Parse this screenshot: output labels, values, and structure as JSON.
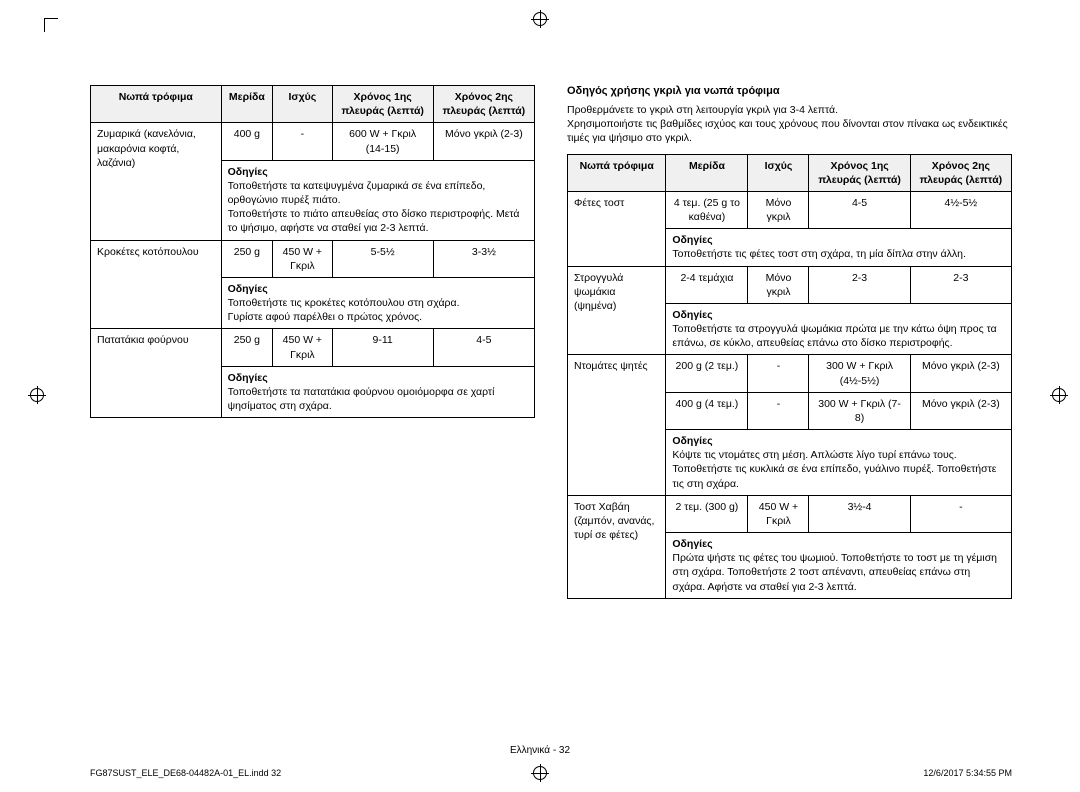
{
  "left": {
    "headers": [
      "Νωπά τρόφιμα",
      "Μερίδα",
      "Ισχύς",
      "Χρόνος 1ης πλευράς (λεπτά)",
      "Χρόνος 2ης πλευράς (λεπτά)"
    ],
    "rows": [
      {
        "food": "Ζυμαρικά (κανελόνια, μακαρόνια κοφτά, λαζάνια)",
        "portion": "400 g",
        "power": "-",
        "side1": "600 W + Γκριλ (14-15)",
        "side2": "Μόνο γκριλ (2-3)",
        "instr_label": "Οδηγίες",
        "instr": "Τοποθετήστε τα κατεψυγμένα ζυμαρικά σε ένα επίπεδο, ορθογώνιο πυρέξ πιάτο.\nΤοποθετήστε το πιάτο απευθείας στο δίσκο περιστροφής. Μετά το ψήσιμο, αφήστε να σταθεί για 2-3 λεπτά."
      },
      {
        "food": "Κροκέτες κοτόπουλου",
        "portion": "250 g",
        "power": "450 W + Γκριλ",
        "side1": "5-5½",
        "side2": "3-3½",
        "instr_label": "Οδηγίες",
        "instr": "Τοποθετήστε τις κροκέτες κοτόπουλου στη σχάρα.\nΓυρίστε αφού παρέλθει ο πρώτος χρόνος."
      },
      {
        "food": "Πατατάκια φούρνου",
        "portion": "250 g",
        "power": "450 W + Γκριλ",
        "side1": "9-11",
        "side2": "4-5",
        "instr_label": "Οδηγίες",
        "instr": "Τοποθετήστε τα πατατάκια φούρνου ομοιόμορφα σε χαρτί ψησίματος στη σχάρα."
      }
    ]
  },
  "right": {
    "title": "Οδηγός χρήσης γκριλ για νωπά τρόφιμα",
    "intro": "Προθερμάνετε το γκριλ στη λειτουργία γκριλ για 3-4 λεπτά.\nΧρησιμοποιήστε τις βαθμίδες ισχύος και τους χρόνους που δίνονται στον πίνακα ως ενδεικτικές τιμές για ψήσιμο στο γκριλ.",
    "headers": [
      "Νωπά τρόφιμα",
      "Μερίδα",
      "Ισχύς",
      "Χρόνος 1ης πλευράς (λεπτά)",
      "Χρόνος 2ης πλευράς (λεπτά)"
    ],
    "rows": [
      {
        "food": "Φέτες τοστ",
        "portion": "4 τεμ. (25 g το καθένα)",
        "power": "Μόνο γκριλ",
        "side1": "4-5",
        "side2": "4½-5½",
        "instr_label": "Οδηγίες",
        "instr": "Τοποθετήστε τις φέτες τοστ στη σχάρα, τη μία δίπλα στην άλλη."
      },
      {
        "food": "Στρογγυλά ψωμάκια (ψημένα)",
        "portion": "2-4 τεμάχια",
        "power": "Μόνο γκριλ",
        "side1": "2-3",
        "side2": "2-3",
        "instr_label": "Οδηγίες",
        "instr": "Τοποθετήστε τα στρογγυλά ψωμάκια πρώτα με την κάτω όψη προς τα επάνω, σε κύκλο, απευθείας επάνω στο δίσκο περιστροφής."
      },
      {
        "food": "Ντομάτες ψητές",
        "sub": [
          {
            "portion": "200 g (2 τεμ.)",
            "power": "-",
            "side1": "300 W + Γκριλ (4½-5½)",
            "side2": "Μόνο γκριλ (2-3)"
          },
          {
            "portion": "400 g (4 τεμ.)",
            "power": "-",
            "side1": "300 W + Γκριλ (7-8)",
            "side2": "Μόνο γκριλ (2-3)"
          }
        ],
        "instr_label": "Οδηγίες",
        "instr": "Κόψτε τις ντομάτες στη μέση. Απλώστε λίγο τυρί επάνω τους. Τοποθετήστε τις κυκλικά σε ένα επίπεδο, γυάλινο πυρέξ. Τοποθετήστε τις στη σχάρα."
      },
      {
        "food": "Τοστ Χαβάη (ζαμπόν, ανανάς, τυρί σε φέτες)",
        "portion": "2 τεμ. (300 g)",
        "power": "450 W + Γκριλ",
        "side1": "3½-4",
        "side2": "-",
        "instr_label": "Οδηγίες",
        "instr": "Πρώτα ψήστε τις φέτες του ψωμιού. Τοποθετήστε το τοστ με τη γέμιση στη σχάρα. Τοποθετήστε 2 τοστ απέναντι, απευθείας επάνω στη σχάρα. Αφήστε να σταθεί για 2-3 λεπτά."
      }
    ]
  },
  "footer": {
    "page": "Ελληνικά - 32",
    "file": "FG87SUST_ELE_DE68-04482A-01_EL.indd   32",
    "date": "12/6/2017   5:34:55 PM"
  }
}
